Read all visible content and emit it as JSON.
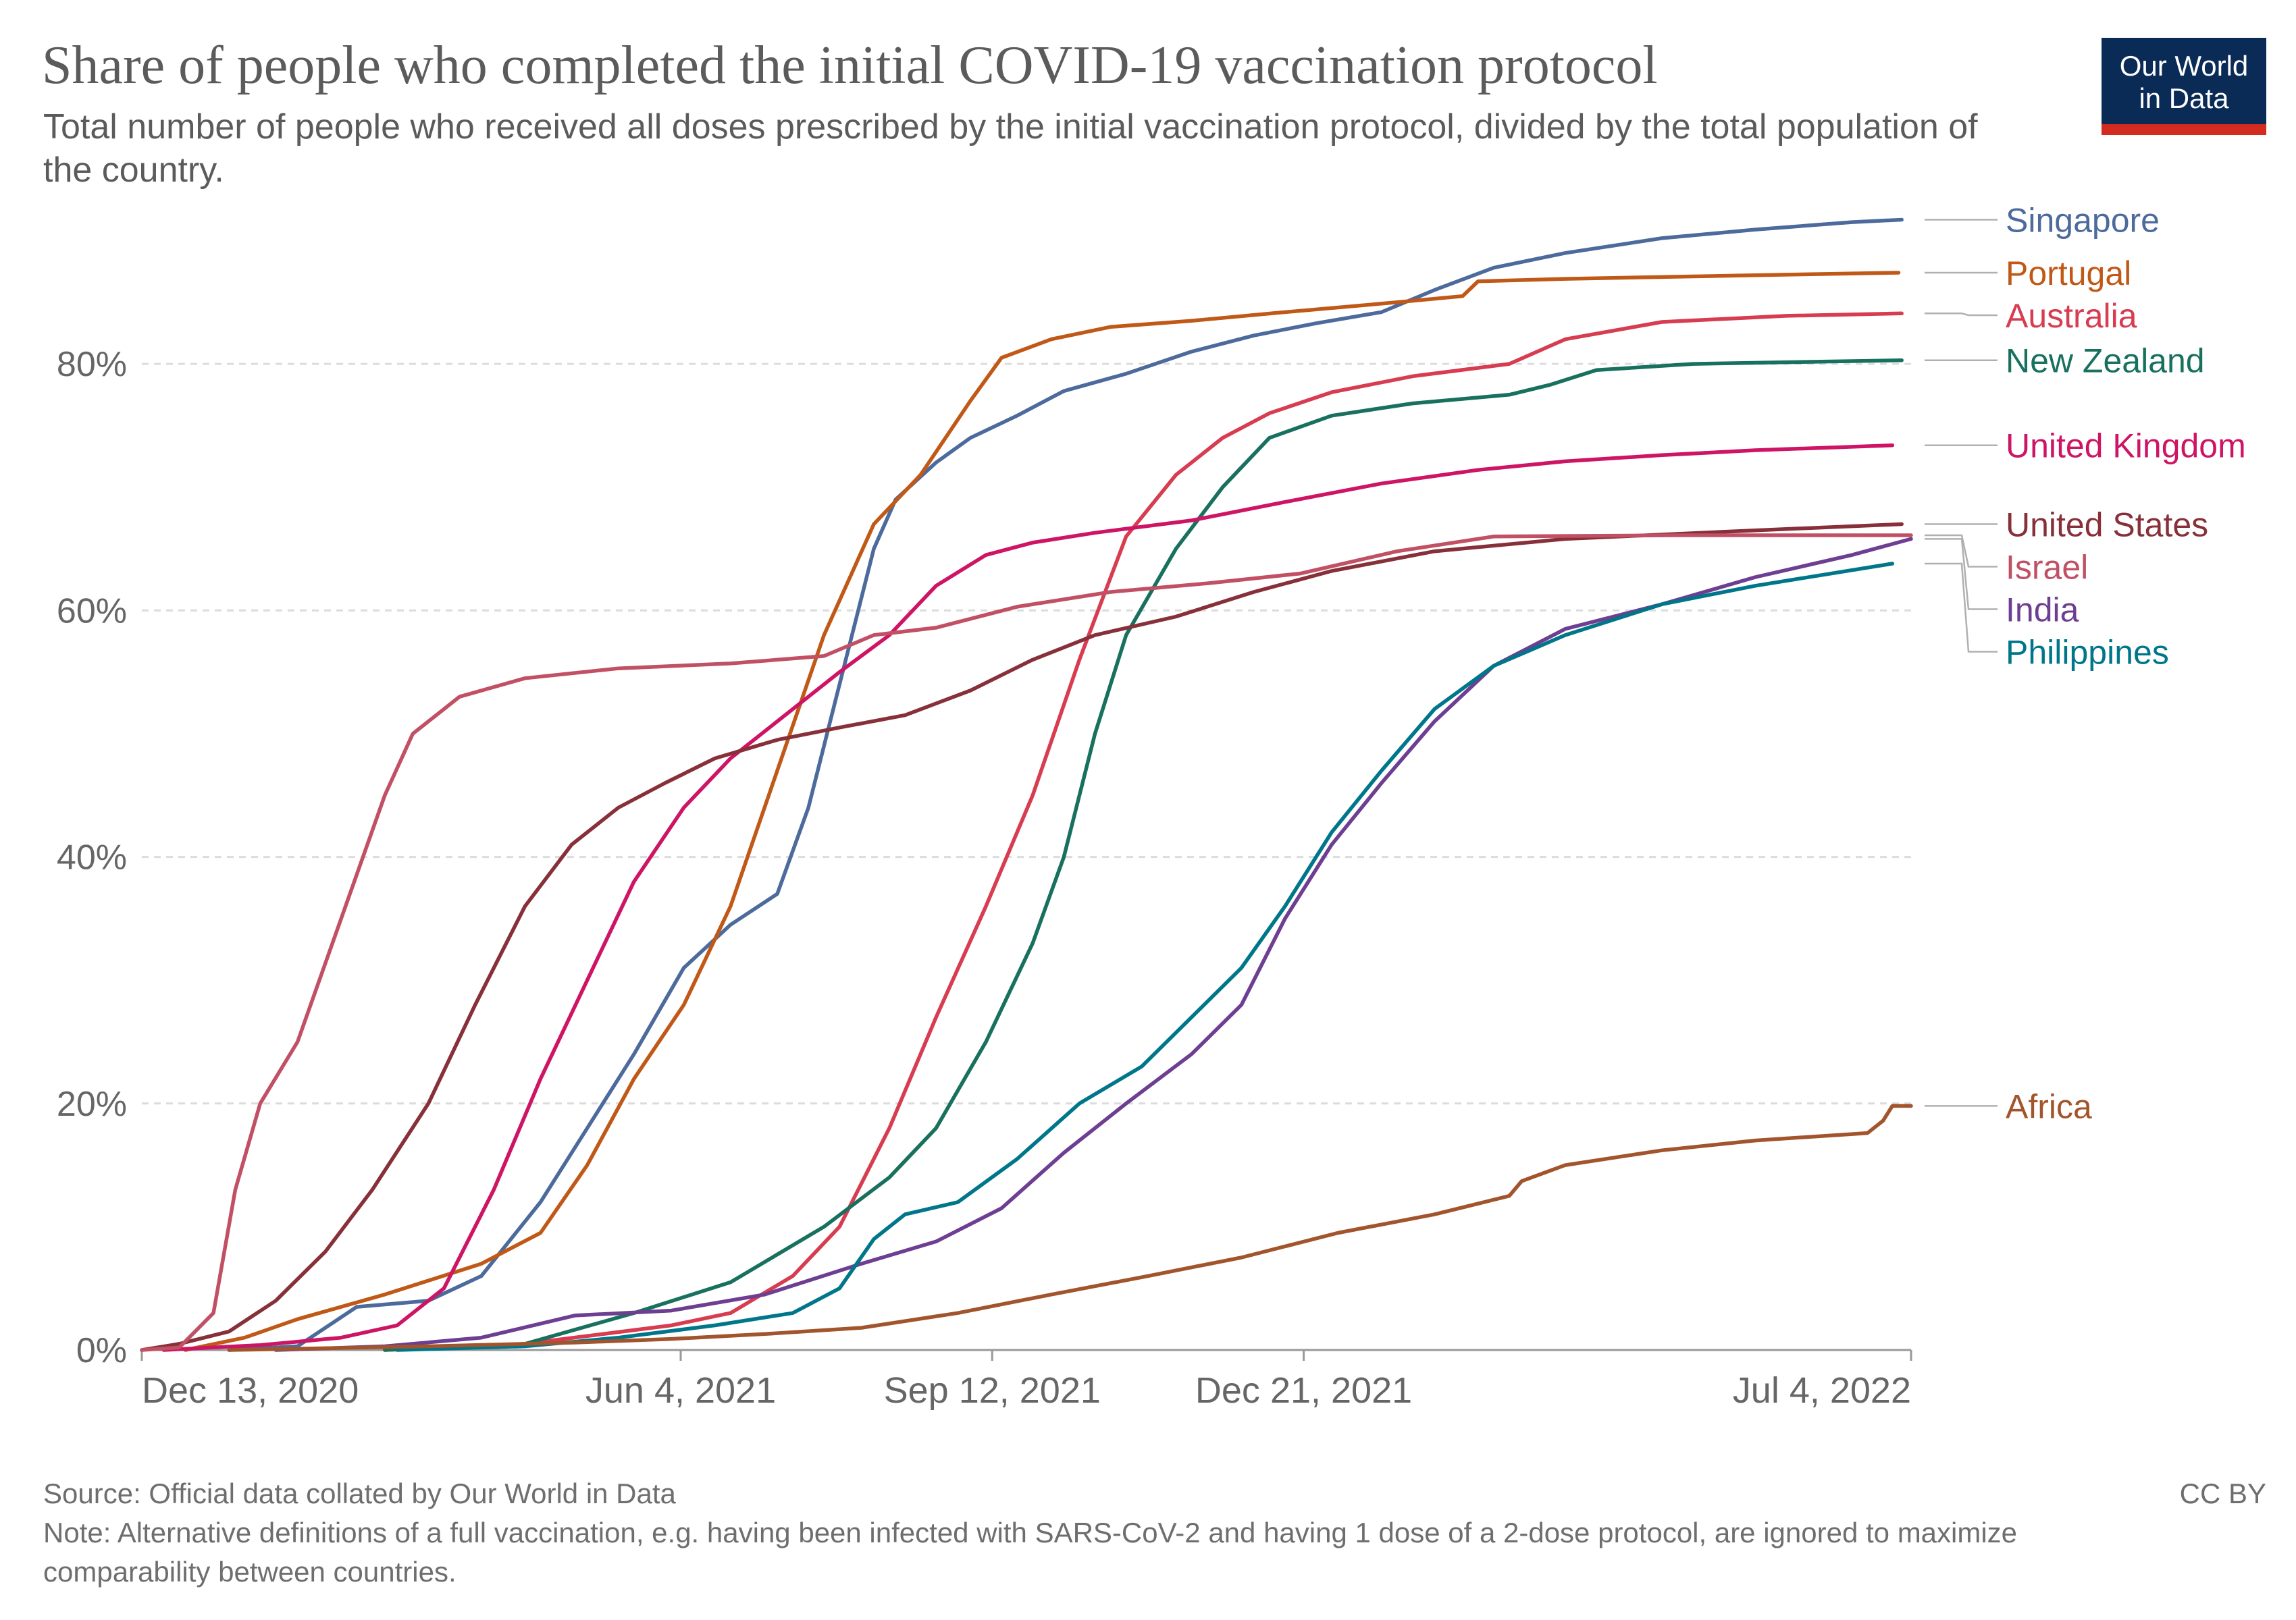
{
  "header": {
    "title": "Share of people who completed the initial COVID-19 vaccination protocol",
    "subtitle": "Total number of people who received all doses prescribed by the initial vaccination protocol, divided by the total population of the country.",
    "logo_line1": "Our World",
    "logo_line2": "in Data"
  },
  "footer": {
    "source": "Source: Official data collated by Our World in Data",
    "note": "Note: Alternative definitions of a full vaccination, e.g. having been infected with SARS-CoV-2 and having 1 dose of a 2-dose protocol, are ignored to maximize comparability between countries.",
    "license": "CC BY"
  },
  "chart_data": {
    "type": "line",
    "title": "Share of people who completed the initial COVID-19 vaccination protocol",
    "x_type": "date",
    "xlim": [
      "2020-12-13",
      "2022-07-04"
    ],
    "x_ticks": [
      {
        "date": "2020-12-13",
        "label": "Dec 13, 2020"
      },
      {
        "date": "2021-06-04",
        "label": "Jun 4, 2021"
      },
      {
        "date": "2021-09-12",
        "label": "Sep 12, 2021"
      },
      {
        "date": "2021-12-21",
        "label": "Dec 21, 2021"
      },
      {
        "date": "2022-07-04",
        "label": "Jul 4, 2022"
      }
    ],
    "ylim": [
      0,
      92
    ],
    "y_ticks": [
      0,
      20,
      40,
      60,
      80
    ],
    "y_tick_labels": [
      "0%",
      "20%",
      "40%",
      "60%",
      "80%"
    ],
    "grid": "horizontal dashed",
    "legend": "right, labels at line ends",
    "series": [
      {
        "name": "Singapore",
        "color": "#4c6a9c",
        "points": [
          [
            "2021-01-10",
            0
          ],
          [
            "2021-02-01",
            0.3
          ],
          [
            "2021-02-20",
            3.5
          ],
          [
            "2021-03-15",
            4
          ],
          [
            "2021-04-01",
            6
          ],
          [
            "2021-04-20",
            12
          ],
          [
            "2021-05-05",
            18
          ],
          [
            "2021-05-20",
            24
          ],
          [
            "2021-06-05",
            31
          ],
          [
            "2021-06-20",
            34.5
          ],
          [
            "2021-07-05",
            37
          ],
          [
            "2021-07-15",
            44
          ],
          [
            "2021-07-25",
            54
          ],
          [
            "2021-08-05",
            65
          ],
          [
            "2021-08-12",
            69
          ],
          [
            "2021-08-25",
            72
          ],
          [
            "2021-09-05",
            74
          ],
          [
            "2021-09-20",
            75.8
          ],
          [
            "2021-10-05",
            77.8
          ],
          [
            "2021-10-25",
            79.2
          ],
          [
            "2021-11-15",
            81
          ],
          [
            "2021-12-05",
            82.3
          ],
          [
            "2021-12-25",
            83.3
          ],
          [
            "2022-01-15",
            84.2
          ],
          [
            "2022-02-01",
            86
          ],
          [
            "2022-02-20",
            87.8
          ],
          [
            "2022-03-15",
            89
          ],
          [
            "2022-04-15",
            90.2
          ],
          [
            "2022-05-15",
            90.9
          ],
          [
            "2022-06-15",
            91.5
          ],
          [
            "2022-07-01",
            91.7
          ]
        ]
      },
      {
        "name": "Portugal",
        "color": "#c05917",
        "points": [
          [
            "2020-12-27",
            0
          ],
          [
            "2021-01-15",
            1
          ],
          [
            "2021-02-01",
            2.5
          ],
          [
            "2021-03-01",
            4.5
          ],
          [
            "2021-04-01",
            7
          ],
          [
            "2021-04-20",
            9.5
          ],
          [
            "2021-05-05",
            15
          ],
          [
            "2021-05-20",
            22
          ],
          [
            "2021-06-05",
            28
          ],
          [
            "2021-06-20",
            36
          ],
          [
            "2021-07-05",
            47
          ],
          [
            "2021-07-20",
            58
          ],
          [
            "2021-08-05",
            67
          ],
          [
            "2021-08-20",
            71
          ],
          [
            "2021-09-05",
            77
          ],
          [
            "2021-09-15",
            80.5
          ],
          [
            "2021-10-01",
            82
          ],
          [
            "2021-10-20",
            83
          ],
          [
            "2021-11-15",
            83.5
          ],
          [
            "2021-12-15",
            84.2
          ],
          [
            "2022-01-20",
            85
          ],
          [
            "2022-02-10",
            85.5
          ],
          [
            "2022-02-15",
            86.7
          ],
          [
            "2022-03-15",
            86.9
          ],
          [
            "2022-05-15",
            87.2
          ],
          [
            "2022-06-30",
            87.4
          ]
        ]
      },
      {
        "name": "Australia",
        "color": "#d73c50",
        "points": [
          [
            "2021-03-01",
            0
          ],
          [
            "2021-04-15",
            0.5
          ],
          [
            "2021-06-01",
            2
          ],
          [
            "2021-06-20",
            3
          ],
          [
            "2021-07-10",
            6
          ],
          [
            "2021-07-25",
            10
          ],
          [
            "2021-08-10",
            18
          ],
          [
            "2021-08-25",
            27
          ],
          [
            "2021-09-10",
            36
          ],
          [
            "2021-09-25",
            45
          ],
          [
            "2021-10-10",
            56
          ],
          [
            "2021-10-25",
            66
          ],
          [
            "2021-11-10",
            71
          ],
          [
            "2021-11-25",
            74
          ],
          [
            "2021-12-10",
            76
          ],
          [
            "2021-12-30",
            77.7
          ],
          [
            "2022-01-25",
            79
          ],
          [
            "2022-02-25",
            80
          ],
          [
            "2022-03-15",
            82
          ],
          [
            "2022-04-15",
            83.4
          ],
          [
            "2022-05-25",
            83.9
          ],
          [
            "2022-07-01",
            84.1
          ]
        ]
      },
      {
        "name": "New Zealand",
        "color": "#18705f",
        "points": [
          [
            "2021-03-01",
            0
          ],
          [
            "2021-04-15",
            0.5
          ],
          [
            "2021-05-20",
            3
          ],
          [
            "2021-06-20",
            5.5
          ],
          [
            "2021-07-20",
            10
          ],
          [
            "2021-08-10",
            14
          ],
          [
            "2021-08-25",
            18
          ],
          [
            "2021-09-10",
            25
          ],
          [
            "2021-09-25",
            33
          ],
          [
            "2021-10-05",
            40
          ],
          [
            "2021-10-15",
            50
          ],
          [
            "2021-10-25",
            58
          ],
          [
            "2021-11-10",
            65
          ],
          [
            "2021-11-25",
            70
          ],
          [
            "2021-12-10",
            74
          ],
          [
            "2021-12-30",
            75.8
          ],
          [
            "2022-01-25",
            76.8
          ],
          [
            "2022-02-25",
            77.5
          ],
          [
            "2022-03-10",
            78.3
          ],
          [
            "2022-03-25",
            79.5
          ],
          [
            "2022-04-25",
            80
          ],
          [
            "2022-07-01",
            80.3
          ]
        ]
      },
      {
        "name": "United Kingdom",
        "color": "#ce1464",
        "points": [
          [
            "2020-12-20",
            0
          ],
          [
            "2021-01-20",
            0.4
          ],
          [
            "2021-02-15",
            1
          ],
          [
            "2021-03-05",
            2
          ],
          [
            "2021-03-20",
            5
          ],
          [
            "2021-04-05",
            13
          ],
          [
            "2021-04-20",
            22
          ],
          [
            "2021-05-05",
            30
          ],
          [
            "2021-05-20",
            38
          ],
          [
            "2021-06-05",
            44
          ],
          [
            "2021-06-20",
            48
          ],
          [
            "2021-07-05",
            51
          ],
          [
            "2021-07-25",
            55
          ],
          [
            "2021-08-10",
            58
          ],
          [
            "2021-08-25",
            62
          ],
          [
            "2021-09-10",
            64.5
          ],
          [
            "2021-09-25",
            65.5
          ],
          [
            "2021-10-15",
            66.3
          ],
          [
            "2021-11-15",
            67.3
          ],
          [
            "2021-12-15",
            68.8
          ],
          [
            "2022-01-15",
            70.3
          ],
          [
            "2022-02-15",
            71.4
          ],
          [
            "2022-03-15",
            72.1
          ],
          [
            "2022-04-15",
            72.6
          ],
          [
            "2022-05-15",
            73
          ],
          [
            "2022-06-28",
            73.4
          ]
        ]
      },
      {
        "name": "United States",
        "color": "#883039",
        "points": [
          [
            "2020-12-13",
            0
          ],
          [
            "2020-12-25",
            0.5
          ],
          [
            "2021-01-10",
            1.5
          ],
          [
            "2021-01-25",
            4
          ],
          [
            "2021-02-10",
            8
          ],
          [
            "2021-02-25",
            13
          ],
          [
            "2021-03-15",
            20
          ],
          [
            "2021-03-30",
            28
          ],
          [
            "2021-04-15",
            36
          ],
          [
            "2021-04-30",
            41
          ],
          [
            "2021-05-15",
            44
          ],
          [
            "2021-05-30",
            46
          ],
          [
            "2021-06-15",
            48
          ],
          [
            "2021-07-05",
            49.5
          ],
          [
            "2021-07-25",
            50.5
          ],
          [
            "2021-08-15",
            51.5
          ],
          [
            "2021-09-05",
            53.5
          ],
          [
            "2021-09-25",
            56
          ],
          [
            "2021-10-15",
            58
          ],
          [
            "2021-11-10",
            59.5
          ],
          [
            "2021-12-05",
            61.5
          ],
          [
            "2021-12-30",
            63.2
          ],
          [
            "2022-02-01",
            64.8
          ],
          [
            "2022-03-15",
            65.8
          ],
          [
            "2022-05-15",
            66.5
          ],
          [
            "2022-07-01",
            67
          ]
        ]
      },
      {
        "name": "Israel",
        "color": "#c15065",
        "points": [
          [
            "2020-12-13",
            0
          ],
          [
            "2020-12-25",
            0.2
          ],
          [
            "2021-01-05",
            3
          ],
          [
            "2021-01-12",
            13
          ],
          [
            "2021-01-20",
            20
          ],
          [
            "2021-02-01",
            25
          ],
          [
            "2021-02-15",
            35
          ],
          [
            "2021-03-01",
            45
          ],
          [
            "2021-03-10",
            50
          ],
          [
            "2021-03-25",
            53
          ],
          [
            "2021-04-15",
            54.5
          ],
          [
            "2021-05-15",
            55.3
          ],
          [
            "2021-06-20",
            55.7
          ],
          [
            "2021-07-20",
            56.3
          ],
          [
            "2021-08-05",
            58
          ],
          [
            "2021-08-25",
            58.6
          ],
          [
            "2021-09-20",
            60.3
          ],
          [
            "2021-10-20",
            61.5
          ],
          [
            "2021-11-20",
            62.2
          ],
          [
            "2021-12-20",
            63
          ],
          [
            "2022-01-20",
            64.8
          ],
          [
            "2022-02-20",
            66
          ],
          [
            "2022-04-20",
            66.1
          ],
          [
            "2022-07-04",
            66.1
          ]
        ]
      },
      {
        "name": "India",
        "color": "#6d3e91",
        "points": [
          [
            "2021-01-25",
            0
          ],
          [
            "2021-03-01",
            0.3
          ],
          [
            "2021-04-01",
            1
          ],
          [
            "2021-05-01",
            2.8
          ],
          [
            "2021-06-01",
            3.2
          ],
          [
            "2021-07-01",
            4.5
          ],
          [
            "2021-08-01",
            7
          ],
          [
            "2021-08-25",
            8.8
          ],
          [
            "2021-09-15",
            11.5
          ],
          [
            "2021-10-05",
            16
          ],
          [
            "2021-10-25",
            20
          ],
          [
            "2021-11-15",
            24
          ],
          [
            "2021-12-01",
            28
          ],
          [
            "2021-12-15",
            35
          ],
          [
            "2021-12-30",
            41
          ],
          [
            "2022-01-15",
            46
          ],
          [
            "2022-02-01",
            51
          ],
          [
            "2022-02-20",
            55.5
          ],
          [
            "2022-03-15",
            58.5
          ],
          [
            "2022-04-15",
            60.5
          ],
          [
            "2022-05-15",
            62.7
          ],
          [
            "2022-06-15",
            64.5
          ],
          [
            "2022-07-04",
            65.8
          ]
        ]
      },
      {
        "name": "Philippines",
        "color": "#00768a",
        "points": [
          [
            "2021-03-05",
            0
          ],
          [
            "2021-04-15",
            0.3
          ],
          [
            "2021-05-15",
            1
          ],
          [
            "2021-06-15",
            2
          ],
          [
            "2021-07-10",
            3
          ],
          [
            "2021-07-25",
            5
          ],
          [
            "2021-08-05",
            9
          ],
          [
            "2021-08-15",
            11
          ],
          [
            "2021-09-01",
            12
          ],
          [
            "2021-09-20",
            15.5
          ],
          [
            "2021-10-10",
            20
          ],
          [
            "2021-10-30",
            23
          ],
          [
            "2021-11-15",
            27
          ],
          [
            "2021-12-01",
            31
          ],
          [
            "2021-12-15",
            36
          ],
          [
            "2021-12-30",
            42
          ],
          [
            "2022-01-15",
            47
          ],
          [
            "2022-02-01",
            52
          ],
          [
            "2022-02-20",
            55.5
          ],
          [
            "2022-03-15",
            58
          ],
          [
            "2022-04-15",
            60.5
          ],
          [
            "2022-05-15",
            62
          ],
          [
            "2022-06-28",
            63.8
          ]
        ]
      },
      {
        "name": "Africa",
        "color": "#a2552c",
        "points": [
          [
            "2021-01-10",
            0
          ],
          [
            "2021-03-15",
            0.3
          ],
          [
            "2021-05-01",
            0.6
          ],
          [
            "2021-06-01",
            0.9
          ],
          [
            "2021-07-01",
            1.3
          ],
          [
            "2021-08-01",
            1.8
          ],
          [
            "2021-09-01",
            3
          ],
          [
            "2021-10-01",
            4.5
          ],
          [
            "2021-11-01",
            6
          ],
          [
            "2021-12-01",
            7.5
          ],
          [
            "2022-01-01",
            9.5
          ],
          [
            "2022-02-01",
            11
          ],
          [
            "2022-02-25",
            12.5
          ],
          [
            "2022-03-01",
            13.7
          ],
          [
            "2022-03-15",
            15
          ],
          [
            "2022-04-15",
            16.2
          ],
          [
            "2022-05-15",
            17
          ],
          [
            "2022-06-20",
            17.6
          ],
          [
            "2022-06-25",
            18.6
          ],
          [
            "2022-06-28",
            19.8
          ],
          [
            "2022-07-04",
            19.8
          ]
        ]
      }
    ],
    "legend_order": [
      "Singapore",
      "Portugal",
      "Australia",
      "New Zealand",
      "United Kingdom",
      "United States",
      "Israel",
      "India",
      "Philippines",
      "Africa"
    ]
  }
}
